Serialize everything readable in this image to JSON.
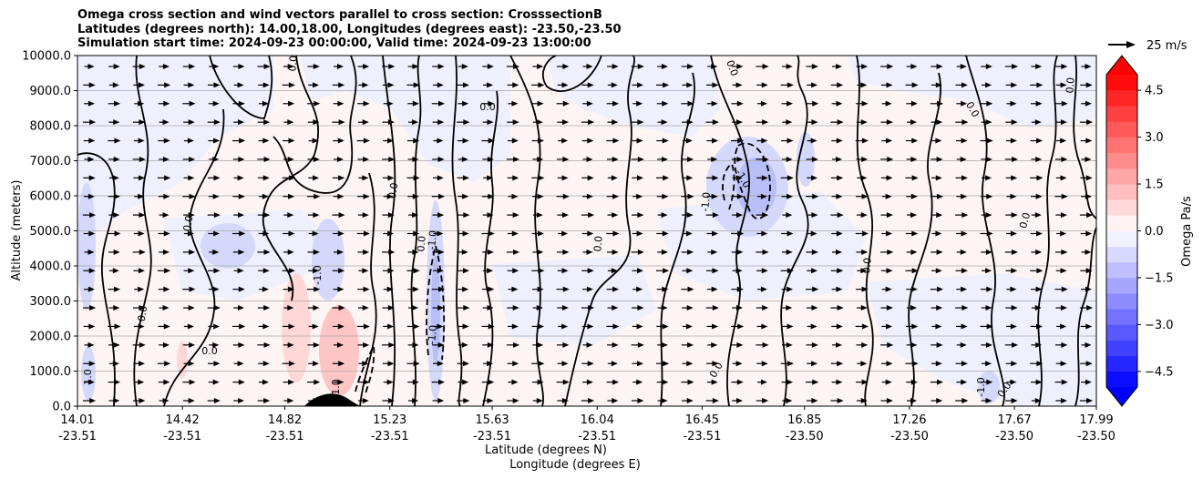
{
  "title": {
    "line1": "Omega cross section and wind vectors parallel to cross section: CrosssectionB",
    "line2": "Latitudes (degrees north): 14.00,18.00, Longitudes (degrees east): -23.50,-23.50",
    "line3": "Simulation start time: 2024-09-23 00:00:00, Valid time: 2024-09-23 13:00:00"
  },
  "chart_data": {
    "type": "heatmap",
    "subtype": "filled contour cross-section with wind vectors",
    "ylabel": "Altitude (meters)",
    "xlabel_lat": "Latitude (degrees N)",
    "xlabel_lon": "Longitude (degrees E)",
    "ylim": [
      0,
      10000
    ],
    "y_ticks": [
      "0.0",
      "1000.0",
      "2000.0",
      "3000.0",
      "4000.0",
      "5000.0",
      "6000.0",
      "7000.0",
      "8000.0",
      "9000.0",
      "10000.0"
    ],
    "x_ticks": [
      {
        "lat": "14.01",
        "lon": "-23.51"
      },
      {
        "lat": "14.42",
        "lon": "-23.51"
      },
      {
        "lat": "14.82",
        "lon": "-23.51"
      },
      {
        "lat": "15.23",
        "lon": "-23.51"
      },
      {
        "lat": "15.63",
        "lon": "-23.51"
      },
      {
        "lat": "16.04",
        "lon": "-23.51"
      },
      {
        "lat": "16.45",
        "lon": "-23.51"
      },
      {
        "lat": "16.85",
        "lon": "-23.50"
      },
      {
        "lat": "17.26",
        "lon": "-23.50"
      },
      {
        "lat": "17.67",
        "lon": "-23.50"
      },
      {
        "lat": "17.99",
        "lon": "-23.50"
      }
    ],
    "xlim": [
      14.01,
      17.99
    ],
    "grid": "horizontal",
    "colorbar": {
      "label": "Omega Pa/s",
      "range": [
        -5.0,
        5.0
      ],
      "ticks": [
        "4.5",
        "3.0",
        "1.5",
        "0.0",
        "−1.5",
        "−3.0",
        "−4.5"
      ],
      "colormap": "bwr",
      "extend": "both"
    },
    "contour_labels": [
      "0.0",
      "-1.0",
      "1.0"
    ],
    "quiver_key": {
      "label": "25 m/s"
    },
    "colors": {
      "positive": "#ff0000",
      "negative": "#0000ff",
      "zero": "#ffffff",
      "terrain": "#000000"
    }
  }
}
